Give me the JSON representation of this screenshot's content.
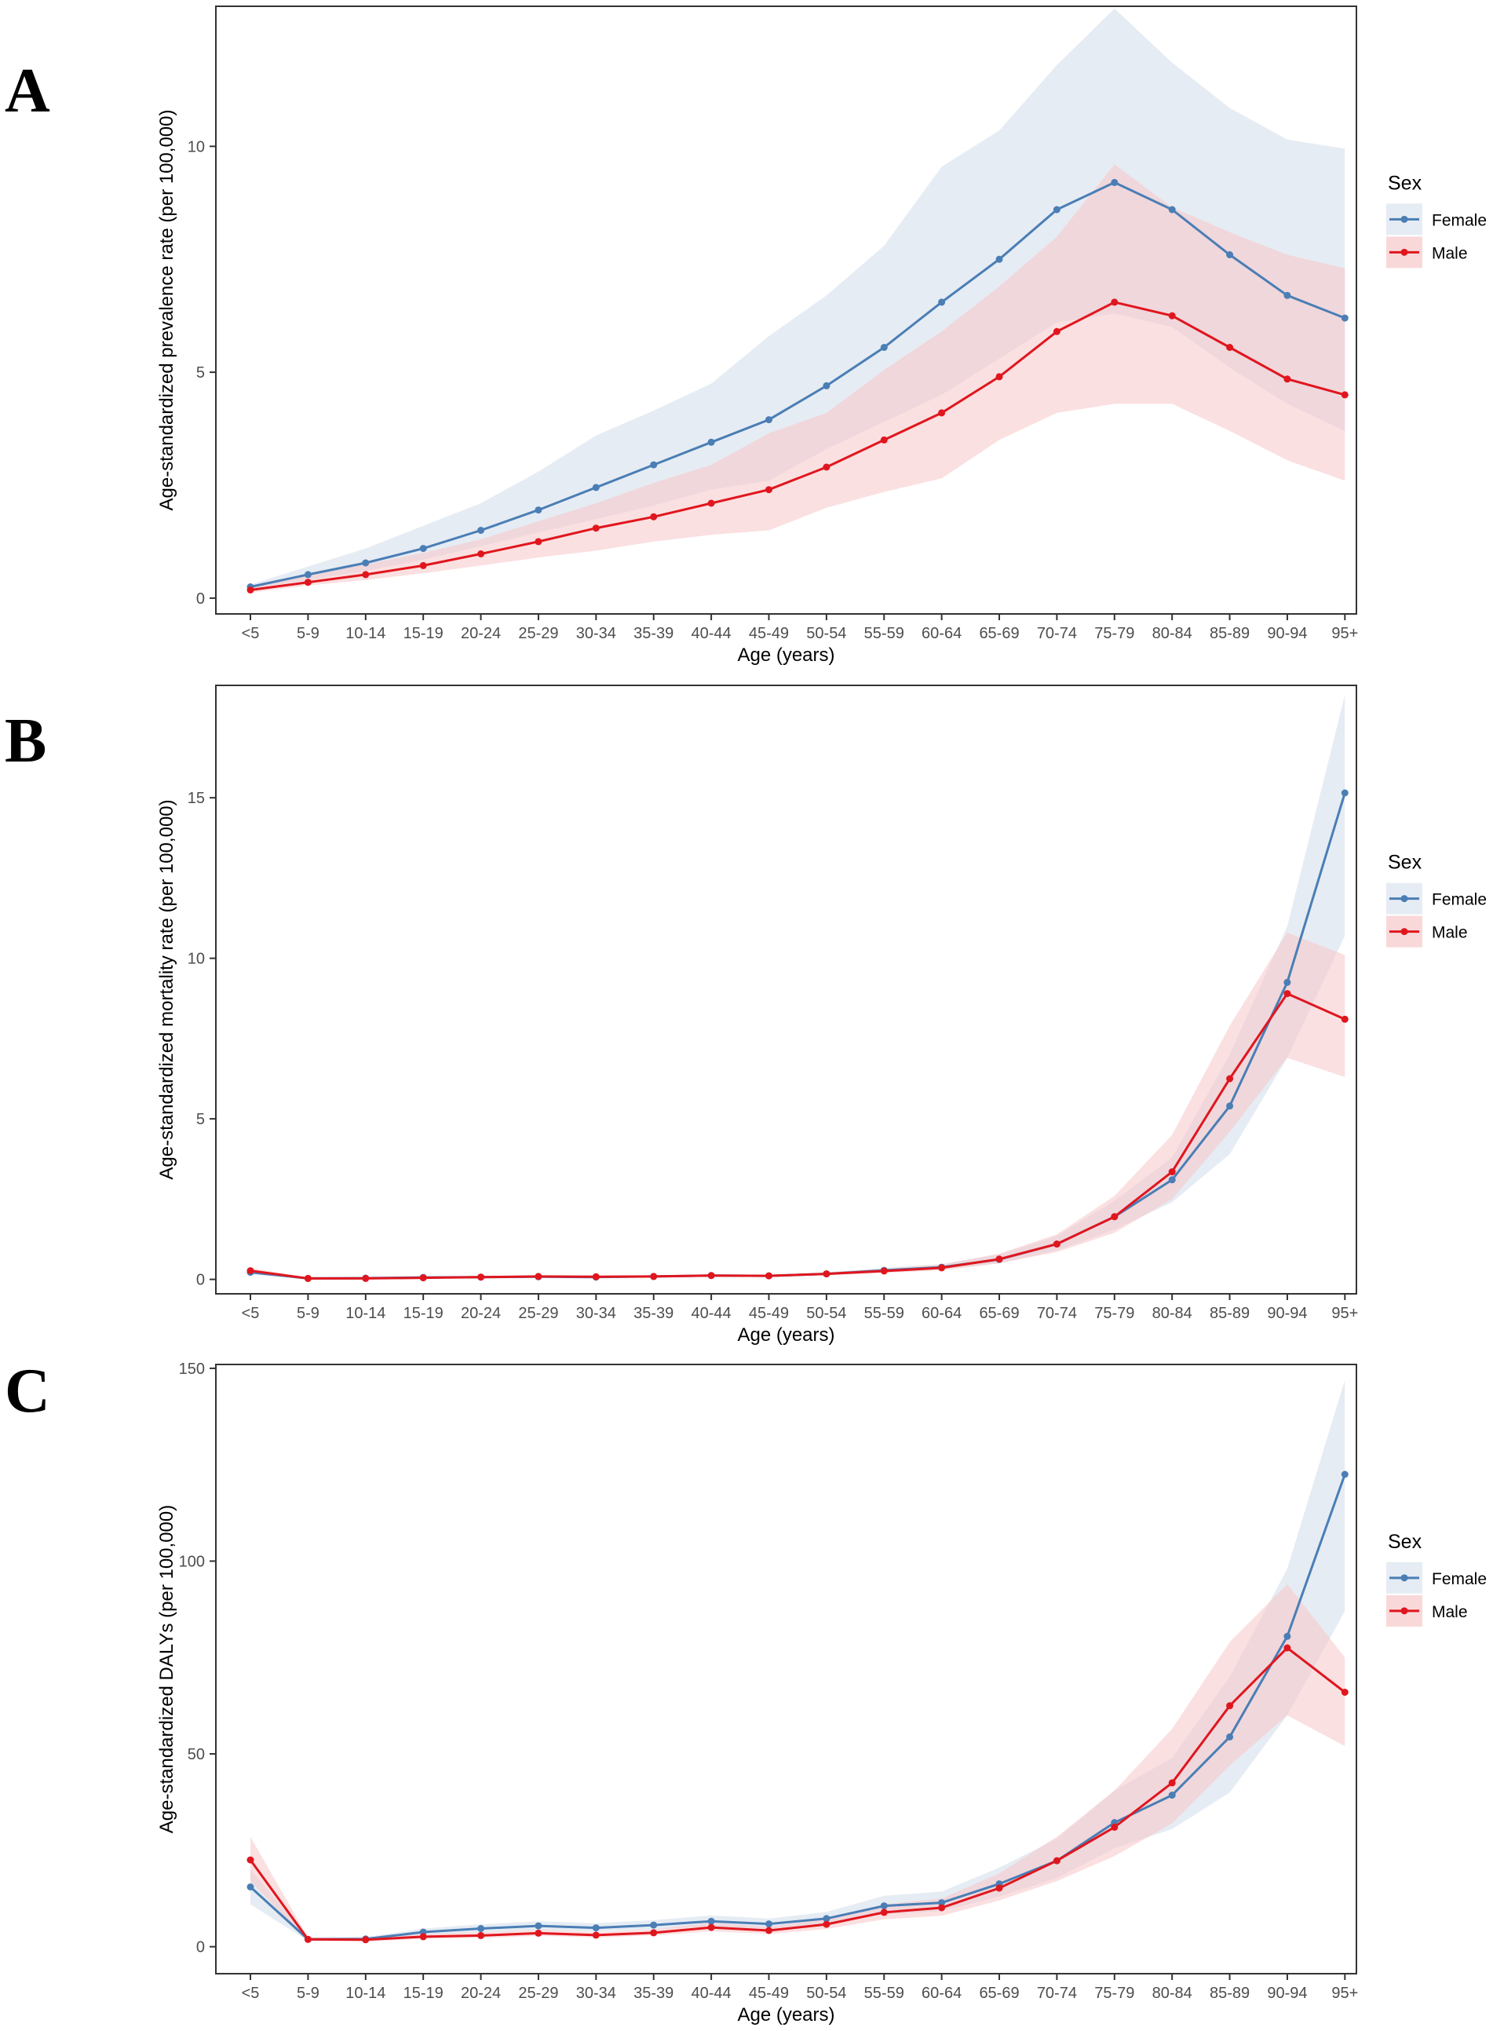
{
  "panels": [
    {
      "letter": "A"
    },
    {
      "letter": "B"
    },
    {
      "letter": "C"
    }
  ],
  "colors": {
    "female": "#4a7eb5",
    "male": "#e0161e",
    "female_band": "#dbe4ee",
    "male_band": "#f7c7c9"
  },
  "chart_data": [
    {
      "type": "line",
      "panel": "A",
      "categories": [
        "<5",
        "5-9",
        "10-14",
        "15-19",
        "20-24",
        "25-29",
        "30-34",
        "35-39",
        "40-44",
        "45-49",
        "50-54",
        "55-59",
        "60-64",
        "65-69",
        "70-74",
        "75-79",
        "80-84",
        "85-89",
        "90-94",
        "95+"
      ],
      "xlabel": "Age (years)",
      "ylabel": "Age-standardized prevalence rate (per 100,000)",
      "ylim": [
        -0.35,
        13.1
      ],
      "yticks": [
        0,
        5,
        10
      ],
      "legend_title": "Sex",
      "legend_position": "right",
      "series": [
        {
          "name": "Female",
          "values": [
            0.25,
            0.52,
            0.78,
            1.1,
            1.5,
            1.95,
            2.45,
            2.95,
            3.45,
            3.95,
            4.7,
            5.55,
            6.55,
            7.5,
            8.6,
            9.2,
            8.6,
            7.6,
            6.7,
            6.2
          ],
          "lower": [
            0.2,
            0.4,
            0.6,
            0.85,
            1.15,
            1.45,
            1.75,
            2.05,
            2.4,
            2.6,
            3.3,
            3.9,
            4.5,
            5.3,
            6.1,
            6.3,
            6.0,
            5.1,
            4.3,
            3.7
          ],
          "upper": [
            0.3,
            0.7,
            1.1,
            1.6,
            2.1,
            2.8,
            3.6,
            4.15,
            4.75,
            5.8,
            6.7,
            7.8,
            9.55,
            10.35,
            11.8,
            13.05,
            11.85,
            10.85,
            10.15,
            9.95
          ]
        },
        {
          "name": "Male",
          "values": [
            0.18,
            0.35,
            0.52,
            0.72,
            0.98,
            1.25,
            1.55,
            1.8,
            2.1,
            2.4,
            2.9,
            3.5,
            4.1,
            4.9,
            5.9,
            6.55,
            6.25,
            5.55,
            4.85,
            4.5
          ],
          "lower": [
            0.12,
            0.28,
            0.4,
            0.55,
            0.72,
            0.9,
            1.05,
            1.25,
            1.4,
            1.5,
            2.0,
            2.35,
            2.65,
            3.5,
            4.1,
            4.3,
            4.3,
            3.7,
            3.05,
            2.6
          ],
          "upper": [
            0.25,
            0.5,
            0.75,
            1.0,
            1.3,
            1.7,
            2.1,
            2.55,
            2.95,
            3.65,
            4.1,
            5.05,
            5.9,
            6.9,
            8.0,
            9.6,
            8.65,
            8.1,
            7.6,
            7.3
          ]
        }
      ]
    },
    {
      "type": "line",
      "panel": "B",
      "categories": [
        "<5",
        "5-9",
        "10-14",
        "15-19",
        "20-24",
        "25-29",
        "30-34",
        "35-39",
        "40-44",
        "45-49",
        "50-54",
        "55-59",
        "60-64",
        "65-69",
        "70-74",
        "75-79",
        "80-84",
        "85-89",
        "90-94",
        "95+"
      ],
      "xlabel": "Age (years)",
      "ylabel": "Age-standardized mortality rate (per 100,000)",
      "ylim": [
        -0.45,
        18.5
      ],
      "yticks": [
        0,
        5,
        10,
        15
      ],
      "legend_title": "Sex",
      "legend_position": "right",
      "series": [
        {
          "name": "Female",
          "values": [
            0.22,
            0.03,
            0.04,
            0.06,
            0.07,
            0.08,
            0.07,
            0.09,
            0.12,
            0.11,
            0.17,
            0.28,
            0.38,
            0.62,
            1.1,
            1.95,
            3.1,
            5.4,
            9.25,
            15.15
          ],
          "lower": [
            0.15,
            0.02,
            0.02,
            0.04,
            0.05,
            0.06,
            0.05,
            0.07,
            0.09,
            0.08,
            0.13,
            0.22,
            0.3,
            0.5,
            0.9,
            1.55,
            2.4,
            3.9,
            6.9,
            10.7
          ],
          "upper": [
            0.3,
            0.05,
            0.06,
            0.08,
            0.09,
            0.11,
            0.1,
            0.12,
            0.15,
            0.14,
            0.22,
            0.36,
            0.48,
            0.78,
            1.35,
            2.45,
            3.8,
            7.0,
            11.0,
            18.2
          ]
        },
        {
          "name": "Male",
          "values": [
            0.27,
            0.03,
            0.03,
            0.05,
            0.07,
            0.09,
            0.08,
            0.09,
            0.12,
            0.11,
            0.17,
            0.26,
            0.36,
            0.63,
            1.1,
            1.95,
            3.35,
            6.25,
            8.9,
            8.1
          ],
          "lower": [
            0.2,
            0.02,
            0.02,
            0.04,
            0.05,
            0.07,
            0.06,
            0.07,
            0.09,
            0.08,
            0.13,
            0.2,
            0.28,
            0.5,
            0.85,
            1.45,
            2.5,
            4.6,
            6.9,
            6.3
          ],
          "upper": [
            0.36,
            0.05,
            0.05,
            0.07,
            0.09,
            0.12,
            0.11,
            0.12,
            0.15,
            0.14,
            0.22,
            0.33,
            0.46,
            0.8,
            1.4,
            2.6,
            4.5,
            7.9,
            10.8,
            10.1
          ]
        }
      ]
    },
    {
      "type": "line",
      "panel": "C",
      "categories": [
        "<5",
        "5-9",
        "10-14",
        "15-19",
        "20-24",
        "25-29",
        "30-34",
        "35-39",
        "40-44",
        "45-49",
        "50-54",
        "55-59",
        "60-64",
        "65-69",
        "70-74",
        "75-79",
        "80-84",
        "85-89",
        "90-94",
        "95+"
      ],
      "xlabel": "Age (years)",
      "ylabel": "Age-standardized DALYs (per 100,000)",
      "ylim": [
        -7,
        151
      ],
      "yticks": [
        0,
        50,
        100,
        150
      ],
      "legend_title": "Sex",
      "legend_position": "right",
      "series": [
        {
          "name": "Female",
          "values": [
            15.5,
            1.9,
            2.0,
            3.8,
            4.7,
            5.4,
            4.9,
            5.6,
            6.6,
            5.9,
            7.3,
            10.6,
            11.4,
            16.3,
            22.3,
            32.2,
            39.3,
            54.4,
            80.5,
            122.5
          ],
          "lower": [
            11.0,
            1.5,
            1.6,
            3.0,
            3.7,
            4.3,
            3.9,
            4.5,
            5.3,
            4.6,
            5.8,
            8.5,
            9.2,
            13.0,
            17.8,
            25.5,
            30.5,
            40.0,
            60.0,
            87.0
          ],
          "upper": [
            20.0,
            2.4,
            2.5,
            4.7,
            5.8,
            6.6,
            6.1,
            6.9,
            8.1,
            7.3,
            9.0,
            13.2,
            14.3,
            20.5,
            28.0,
            40.5,
            49.0,
            70.0,
            98.0,
            147.0
          ]
        },
        {
          "name": "Male",
          "values": [
            22.5,
            1.9,
            1.8,
            2.6,
            2.9,
            3.5,
            3.0,
            3.6,
            5.0,
            4.2,
            5.8,
            8.9,
            10.1,
            15.2,
            22.3,
            31.0,
            42.5,
            62.5,
            77.5,
            66.0
          ],
          "lower": [
            17.0,
            1.5,
            1.4,
            2.0,
            2.3,
            2.8,
            2.4,
            2.9,
            4.0,
            3.3,
            4.6,
            7.1,
            8.0,
            12.0,
            17.0,
            23.5,
            32.0,
            47.0,
            60.0,
            52.0
          ],
          "upper": [
            28.5,
            2.4,
            2.3,
            3.3,
            3.7,
            4.4,
            3.8,
            4.5,
            6.2,
            5.2,
            7.2,
            11.0,
            12.5,
            19.0,
            28.5,
            40.5,
            56.5,
            79.0,
            94.0,
            75.0
          ]
        }
      ]
    }
  ]
}
